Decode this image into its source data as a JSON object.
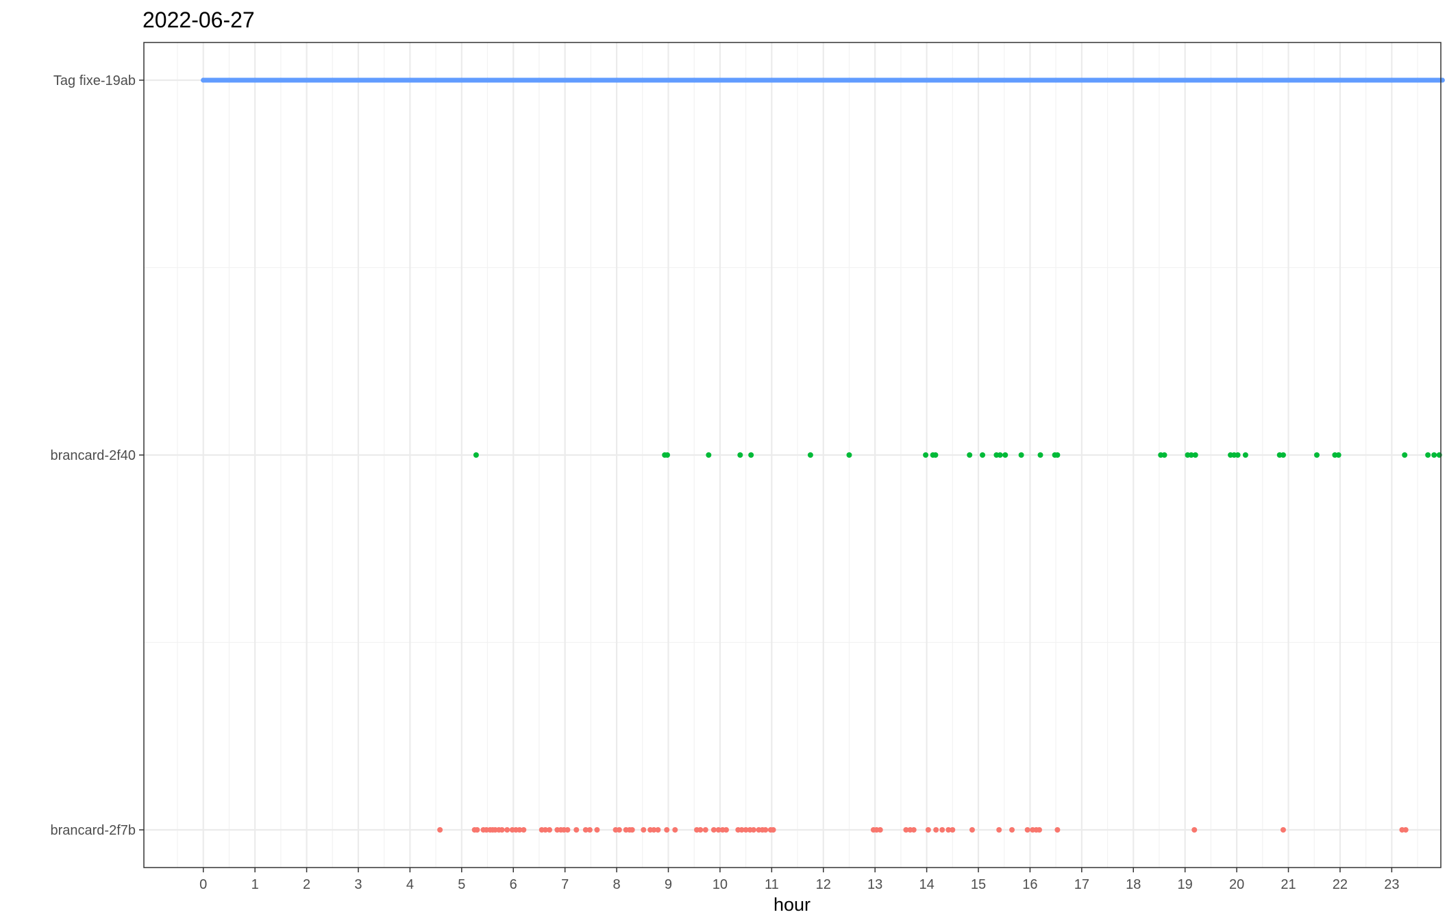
{
  "chart_data": {
    "type": "scatter",
    "title": "2022-06-27",
    "xlabel": "hour",
    "ylabel": "",
    "xlim": [
      -1.15,
      23.95
    ],
    "x_ticks": [
      0,
      1,
      2,
      3,
      4,
      5,
      6,
      7,
      8,
      9,
      10,
      11,
      12,
      13,
      14,
      15,
      16,
      17,
      18,
      19,
      20,
      21,
      22,
      23
    ],
    "x_tick_labels": [
      "0",
      "1",
      "2",
      "3",
      "4",
      "5",
      "6",
      "7",
      "8",
      "9",
      "10",
      "11",
      "12",
      "13",
      "14",
      "15",
      "16",
      "17",
      "18",
      "19",
      "20",
      "21",
      "22",
      "23"
    ],
    "categories": [
      "Tag fixe-19ab",
      "brancard-2f40",
      "brancard-2f7b"
    ],
    "grid": true,
    "legend": "none",
    "series": [
      {
        "category": "Tag fixe-19ab",
        "color": "#619CFF",
        "continuous": true,
        "x": [
          0.0,
          0.5,
          1.0,
          1.5,
          2.0,
          2.5,
          3.0,
          3.5,
          4.0,
          4.5,
          5.0,
          5.5,
          6.0,
          6.5,
          7.0,
          7.5,
          8.0,
          8.5,
          9.0,
          9.5,
          10.0,
          10.5,
          11.0,
          11.5,
          12.0,
          12.5,
          13.0,
          13.5,
          14.0,
          14.5,
          15.0,
          15.5,
          16.0,
          16.5,
          17.0,
          17.5,
          18.0,
          18.5,
          19.0,
          19.5,
          20.0,
          20.5,
          21.0,
          21.5,
          22.0,
          22.5,
          23.0,
          23.5,
          23.98
        ]
      },
      {
        "category": "brancard-2f40",
        "color": "#00BA38",
        "continuous": false,
        "x": [
          5.28,
          8.93,
          8.98,
          9.78,
          10.39,
          10.6,
          11.75,
          12.5,
          13.98,
          14.12,
          14.17,
          14.83,
          15.08,
          15.35,
          15.42,
          15.52,
          15.83,
          16.2,
          16.48,
          16.53,
          18.53,
          18.6,
          19.05,
          19.12,
          19.2,
          19.88,
          19.95,
          20.02,
          20.17,
          20.83,
          20.9,
          21.55,
          21.9,
          21.97,
          23.25,
          23.7,
          23.82,
          23.92
        ]
      },
      {
        "category": "brancard-2f7b",
        "color": "#F8766D",
        "continuous": false,
        "x": [
          4.58,
          5.25,
          5.3,
          5.42,
          5.48,
          5.55,
          5.6,
          5.65,
          5.72,
          5.78,
          5.88,
          5.98,
          6.05,
          6.12,
          6.2,
          6.55,
          6.62,
          6.7,
          6.85,
          6.92,
          6.98,
          7.05,
          7.22,
          7.4,
          7.48,
          7.62,
          7.98,
          8.05,
          8.18,
          8.25,
          8.3,
          8.52,
          8.65,
          8.72,
          8.8,
          8.97,
          9.13,
          9.55,
          9.62,
          9.72,
          9.88,
          9.97,
          10.05,
          10.12,
          10.35,
          10.42,
          10.5,
          10.58,
          10.65,
          10.75,
          10.82,
          10.88,
          10.98,
          11.03,
          12.97,
          13.03,
          13.1,
          13.6,
          13.68,
          13.75,
          14.03,
          14.18,
          14.3,
          14.42,
          14.5,
          14.88,
          15.4,
          15.65,
          15.95,
          16.05,
          16.12,
          16.18,
          16.53,
          19.18,
          20.9,
          23.2,
          23.27
        ]
      }
    ]
  }
}
